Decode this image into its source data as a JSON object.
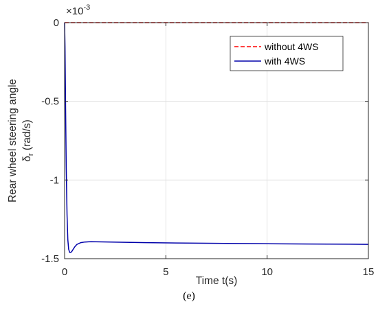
{
  "chart_data": {
    "type": "line",
    "ylabel_line1": "Rear wheel steering angle",
    "ylabel_sym": "δ",
    "ylabel_sub": "r",
    "ylabel_unit": "(rad/s)",
    "xlabel": "Time t(s)",
    "exponent_base": "×10",
    "exponent_power": "-3",
    "xlim": [
      0,
      15
    ],
    "ylim": [
      -1.5,
      0
    ],
    "xticks": [
      0,
      5,
      10,
      15
    ],
    "xtick_labels": [
      "0",
      "5",
      "10",
      "15"
    ],
    "yticks": [
      0,
      -0.5,
      -1,
      -1.5
    ],
    "ytick_labels": [
      "0",
      "-0.5",
      "-1",
      "-1.5"
    ],
    "grid": true,
    "legend_position": "top-right",
    "series": [
      {
        "name": "without 4WS",
        "color": "#ff0000",
        "style": "dashed",
        "x": [
          0,
          15
        ],
        "y": [
          0,
          0
        ]
      },
      {
        "name": "with 4WS",
        "color": "#0000aa",
        "style": "solid",
        "x": [
          0,
          0.02,
          0.05,
          0.08,
          0.12,
          0.16,
          0.2,
          0.25,
          0.3,
          0.35,
          0.4,
          0.5,
          0.6,
          0.8,
          1.0,
          1.3,
          1.8,
          2.5,
          4,
          6,
          8,
          10,
          12,
          14,
          15
        ],
        "y": [
          0,
          -0.15,
          -0.55,
          -0.92,
          -1.22,
          -1.38,
          -1.44,
          -1.46,
          -1.46,
          -1.455,
          -1.445,
          -1.425,
          -1.41,
          -1.398,
          -1.394,
          -1.392,
          -1.393,
          -1.395,
          -1.398,
          -1.401,
          -1.403,
          -1.405,
          -1.407,
          -1.408,
          -1.409
        ]
      }
    ]
  },
  "caption": "(e)"
}
